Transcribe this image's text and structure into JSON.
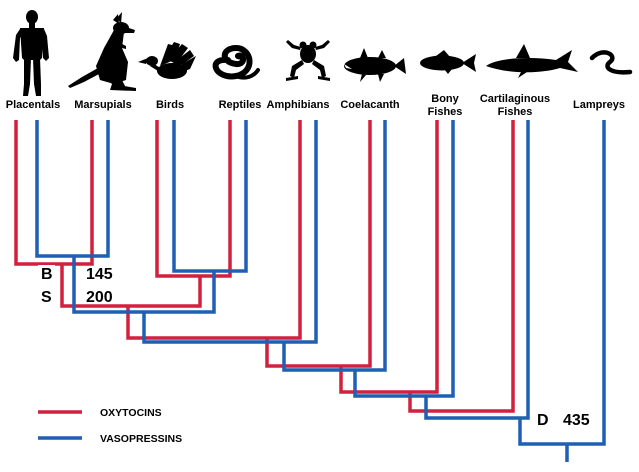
{
  "colors": {
    "oxytocin": "#d2213f",
    "vasopressin": "#1f5fb4"
  },
  "taxa": [
    {
      "id": "placentals",
      "label": [
        "Placentals"
      ],
      "icon": "human-silhouette-icon"
    },
    {
      "id": "marsupials",
      "label": [
        "Marsupials"
      ],
      "icon": "kangaroo-silhouette-icon"
    },
    {
      "id": "birds",
      "label": [
        "Birds"
      ],
      "icon": "duck-silhouette-icon"
    },
    {
      "id": "reptiles",
      "label": [
        "Reptiles"
      ],
      "icon": "snake-silhouette-icon"
    },
    {
      "id": "amphibians",
      "label": [
        "Amphibians"
      ],
      "icon": "frog-silhouette-icon"
    },
    {
      "id": "coelacanth",
      "label": [
        "Coelacanth"
      ],
      "icon": "coelacanth-silhouette-icon"
    },
    {
      "id": "bony-fishes",
      "label": [
        "Bony",
        "Fishes"
      ],
      "icon": "fish-silhouette-icon"
    },
    {
      "id": "cartilaginous-fishes",
      "label": [
        "Cartilaginous",
        "Fishes"
      ],
      "icon": "shark-silhouette-icon"
    },
    {
      "id": "lampreys",
      "label": [
        "Lampreys"
      ],
      "icon": "lamprey-silhouette-icon"
    }
  ],
  "nodes": [
    {
      "letter": "B",
      "value": "145"
    },
    {
      "letter": "S",
      "value": "200"
    },
    {
      "letter": "D",
      "value": "435"
    }
  ],
  "legend": [
    {
      "label": "OXYTOCINS",
      "color": "#d2213f"
    },
    {
      "label": "VASOPRESSINS",
      "color": "#1f5fb4"
    }
  ]
}
